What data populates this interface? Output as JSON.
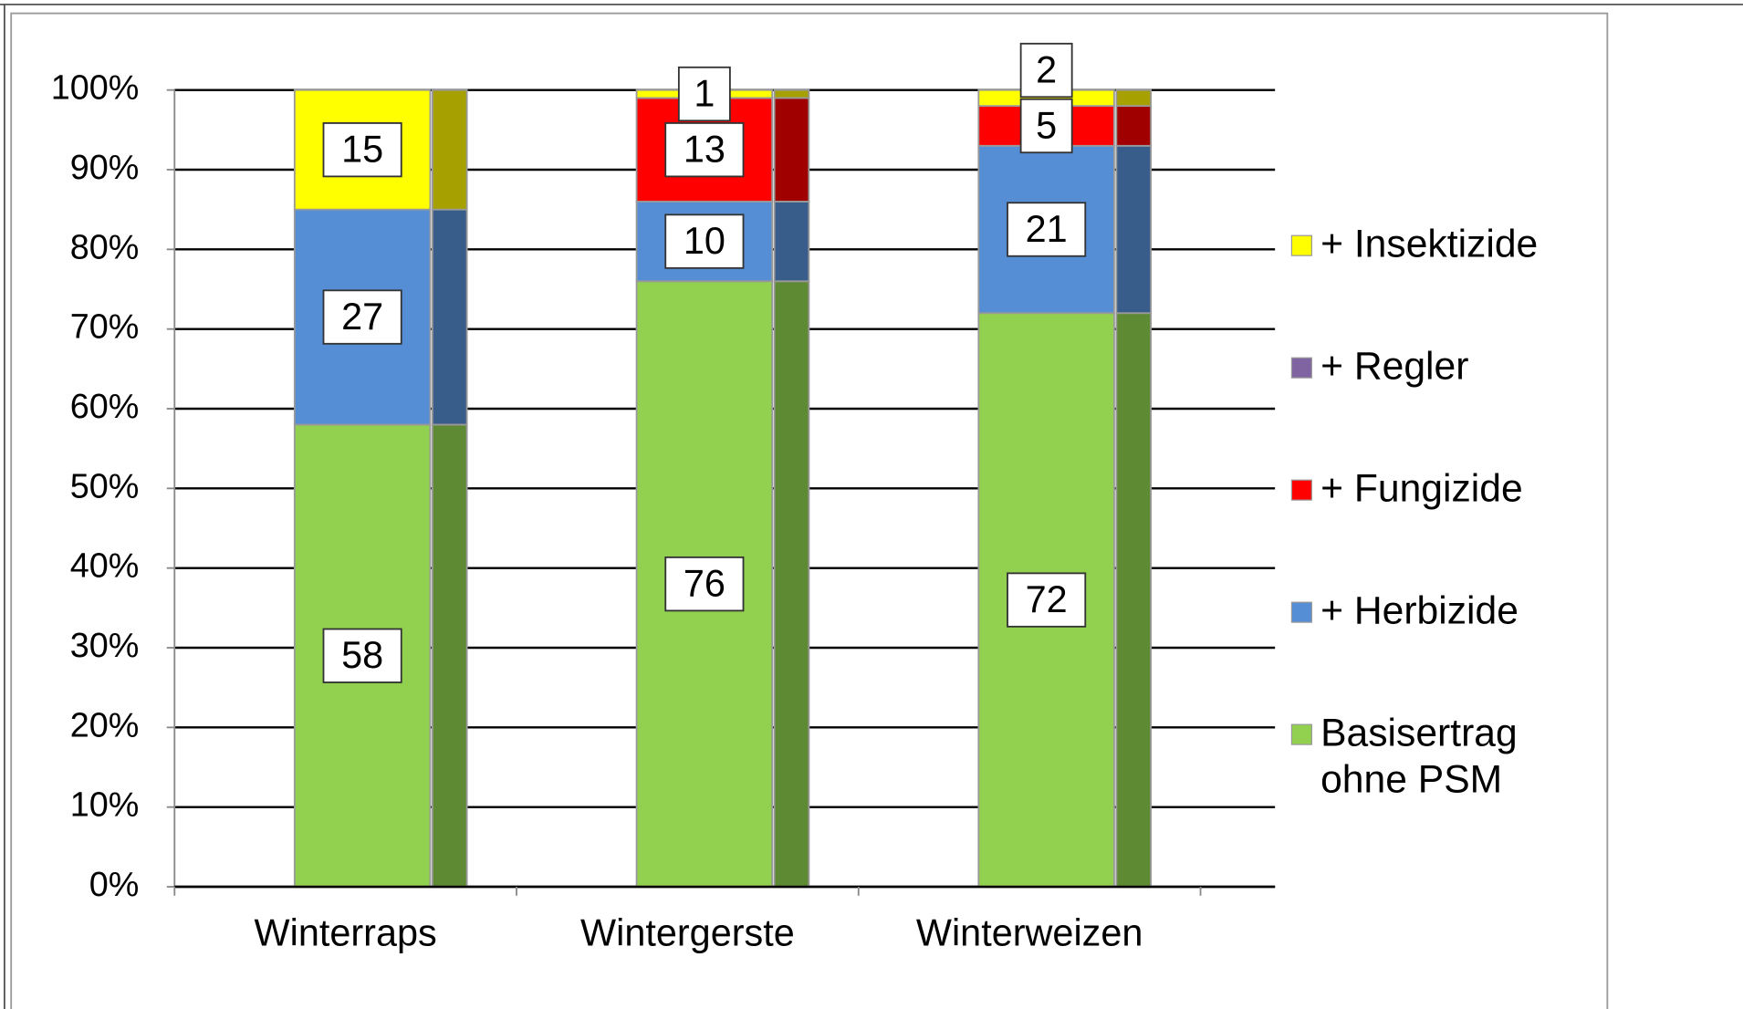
{
  "chart_data": {
    "type": "stacked_bar",
    "categories": [
      "Winterraps",
      "Wintergerste",
      "Winterweizen"
    ],
    "series": [
      {
        "name": "Basisertrag ohne PSM",
        "color": "#92d050",
        "side_color": "#5f8a34",
        "values": [
          58,
          76,
          72
        ]
      },
      {
        "name": "+ Herbizide",
        "color": "#558ed5",
        "side_color": "#385d8a",
        "values": [
          27,
          10,
          21
        ]
      },
      {
        "name": "+ Fungizide",
        "color": "#ff0000",
        "side_color": "#a00000",
        "values": [
          0,
          13,
          5
        ]
      },
      {
        "name": "+ Regler",
        "color": "#8064a2",
        "side_color": "#5c4577",
        "values": [
          0,
          0,
          0
        ]
      },
      {
        "name": "+ Insektizide",
        "color": "#ffff00",
        "side_color": "#a6a000",
        "values": [
          15,
          1,
          2
        ]
      }
    ],
    "ylim": [
      0,
      100
    ],
    "yticks": [
      {
        "value": 0,
        "label": "0%"
      },
      {
        "value": 10,
        "label": "10%"
      },
      {
        "value": 20,
        "label": "20%"
      },
      {
        "value": 30,
        "label": "30%"
      },
      {
        "value": 40,
        "label": "40%"
      },
      {
        "value": 50,
        "label": "50%"
      },
      {
        "value": 60,
        "label": "60%"
      },
      {
        "value": 70,
        "label": "70%"
      },
      {
        "value": 80,
        "label": "80%"
      },
      {
        "value": 90,
        "label": "90%"
      },
      {
        "value": 100,
        "label": "100%"
      }
    ],
    "grid": true,
    "legend": "right"
  }
}
